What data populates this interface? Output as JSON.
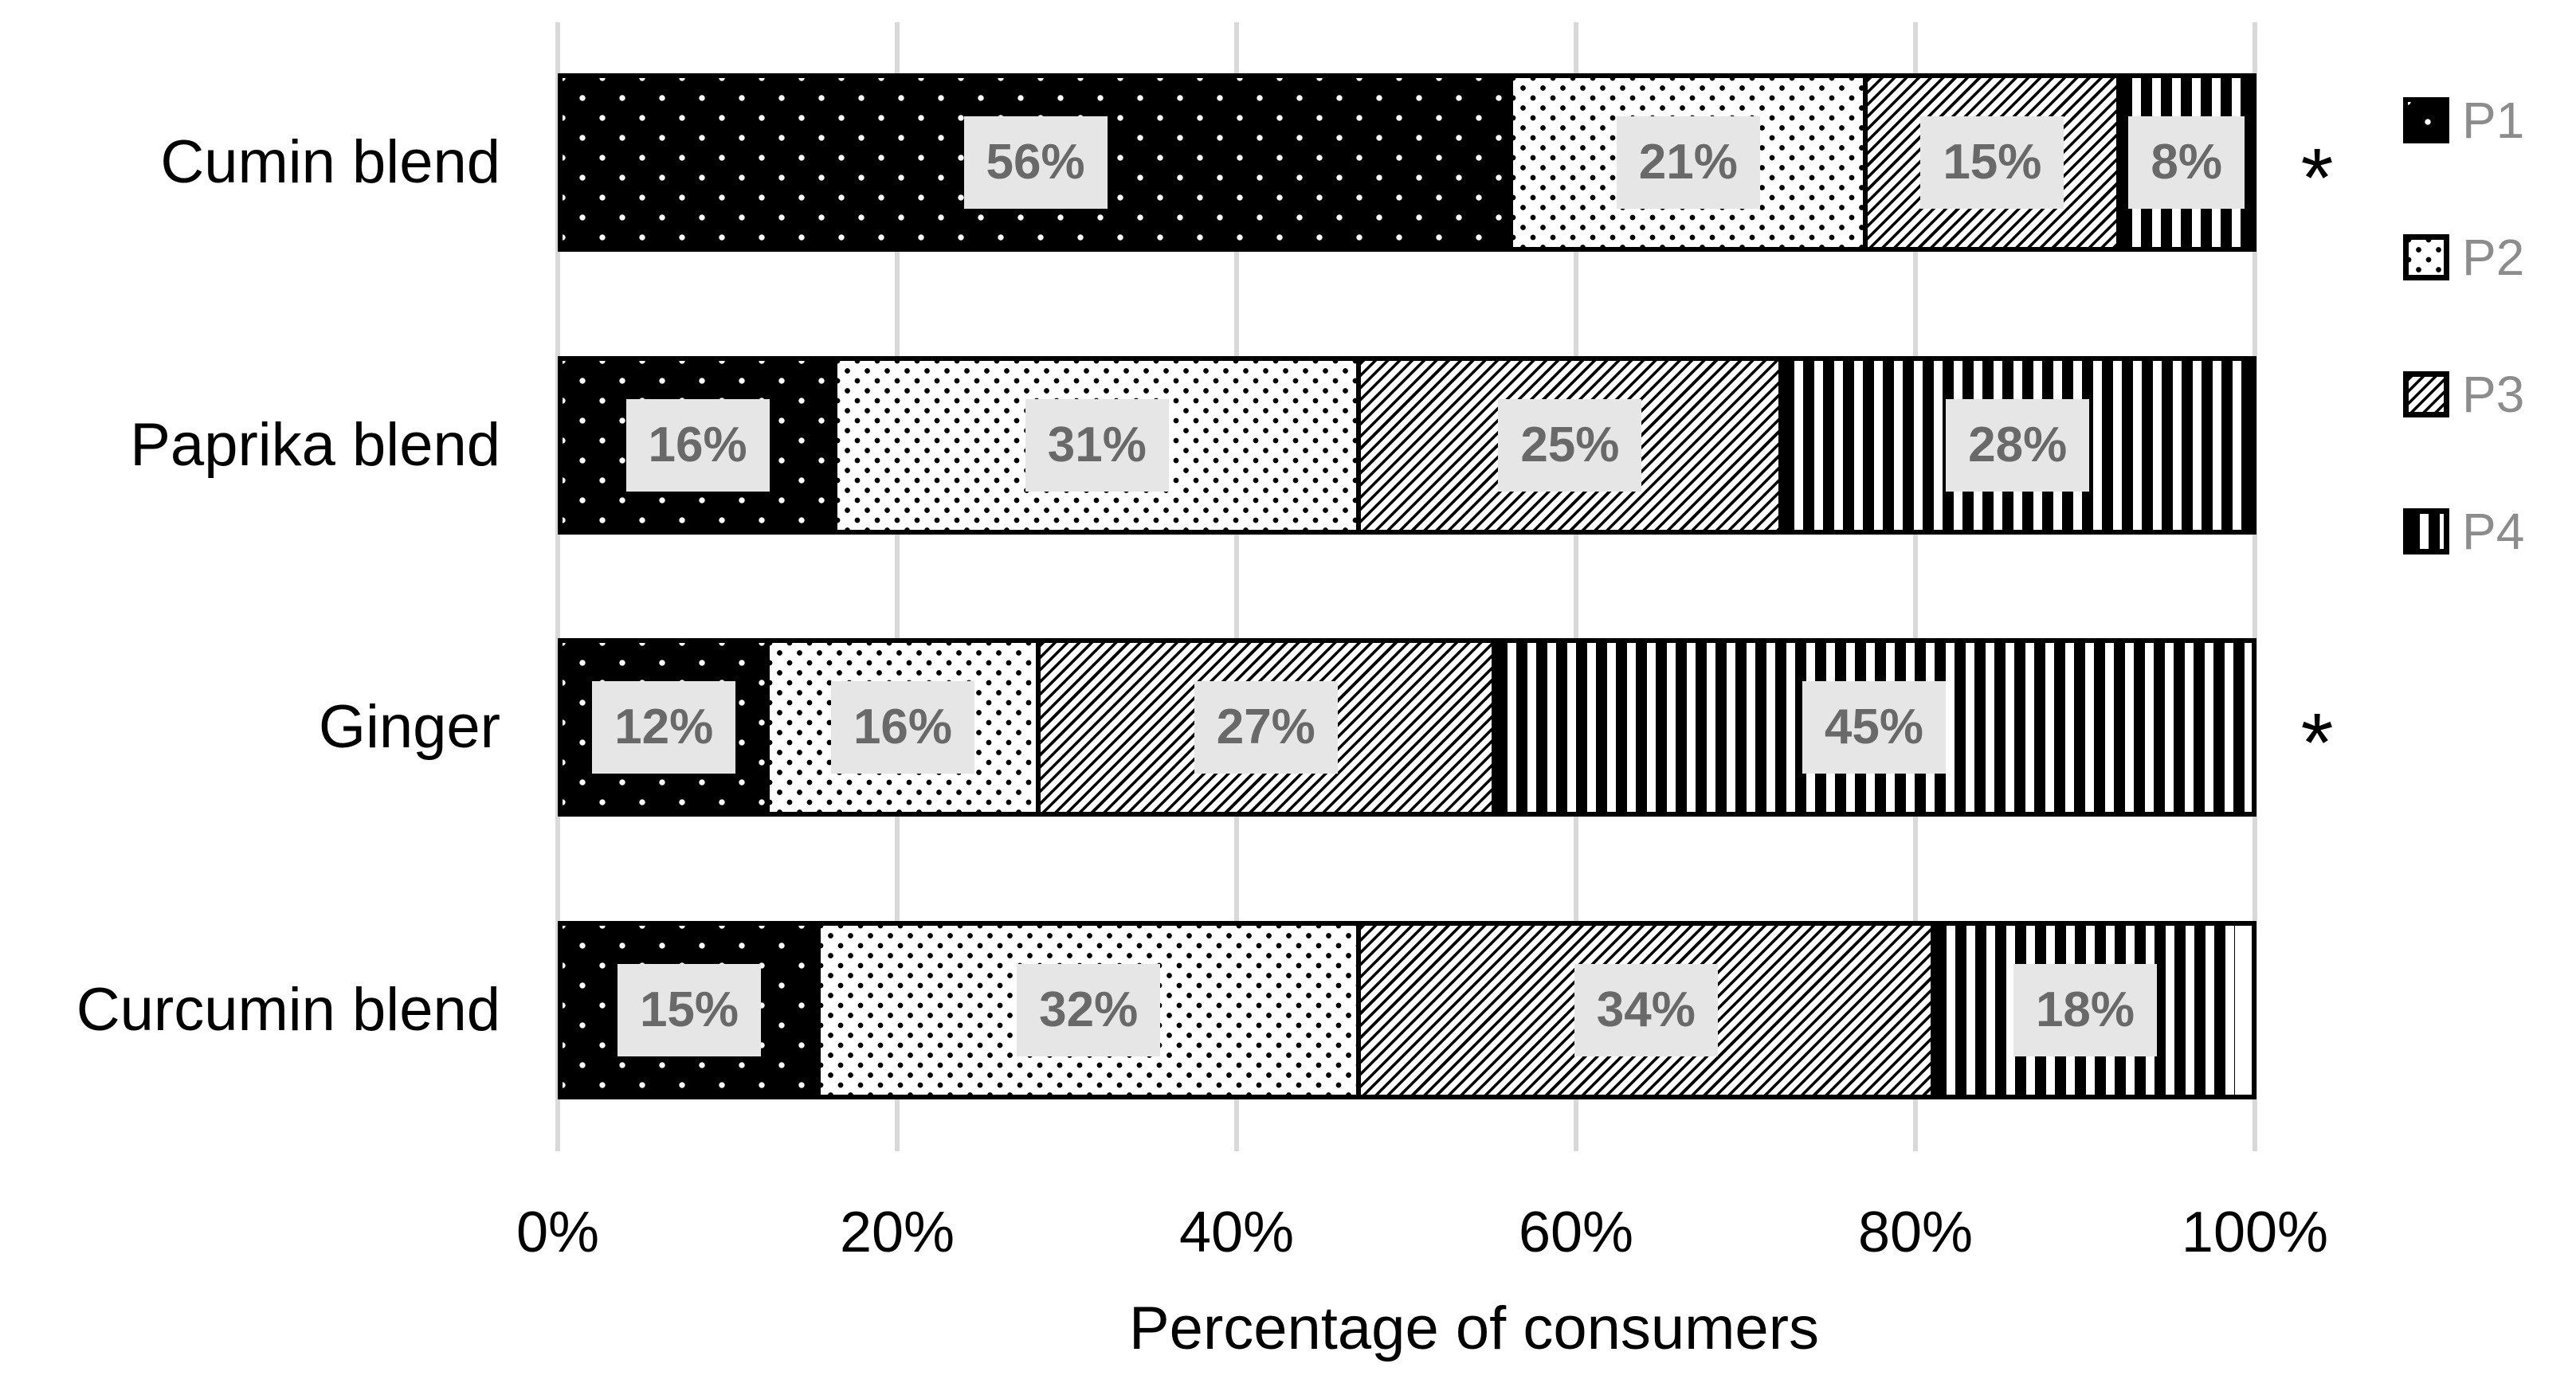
{
  "chart_data": {
    "type": "bar",
    "orientation": "horizontal",
    "stacked": true,
    "xlabel": "Percentage of consumers",
    "xlim": [
      0,
      100
    ],
    "x_ticks": [
      "0%",
      "20%",
      "40%",
      "60%",
      "80%",
      "100%"
    ],
    "grid": "vertical",
    "legend_position": "right",
    "data_labels": "percent-on-gray-box",
    "categories": [
      "Cumin blend",
      "Paprika blend",
      "Ginger",
      "Curcumin blend"
    ],
    "series": [
      {
        "name": "P1",
        "swatch": "white-dots-on-black",
        "values": [
          56,
          16,
          12,
          15
        ]
      },
      {
        "name": "P2",
        "swatch": "black-dots-on-white",
        "values": [
          21,
          31,
          16,
          32
        ]
      },
      {
        "name": "P3",
        "swatch": "diagonal-hatch",
        "values": [
          15,
          25,
          27,
          34
        ]
      },
      {
        "name": "P4",
        "swatch": "vertical-stripes",
        "values": [
          8,
          28,
          45,
          18
        ]
      }
    ],
    "significance_markers": [
      {
        "category": "Cumin blend",
        "symbol": "*"
      },
      {
        "category": "Ginger",
        "symbol": "*"
      }
    ]
  },
  "colors": {
    "background": "#ffffff",
    "gridline": "#d9d9d9",
    "bar_border": "#000000",
    "pattern_foreground": "#000000",
    "pattern_background": "#ffffff",
    "data_label_bg": "#e6e6e6",
    "data_label_text": "#696969",
    "legend_text": "#8c8c8c",
    "axis_text": "#000000"
  }
}
